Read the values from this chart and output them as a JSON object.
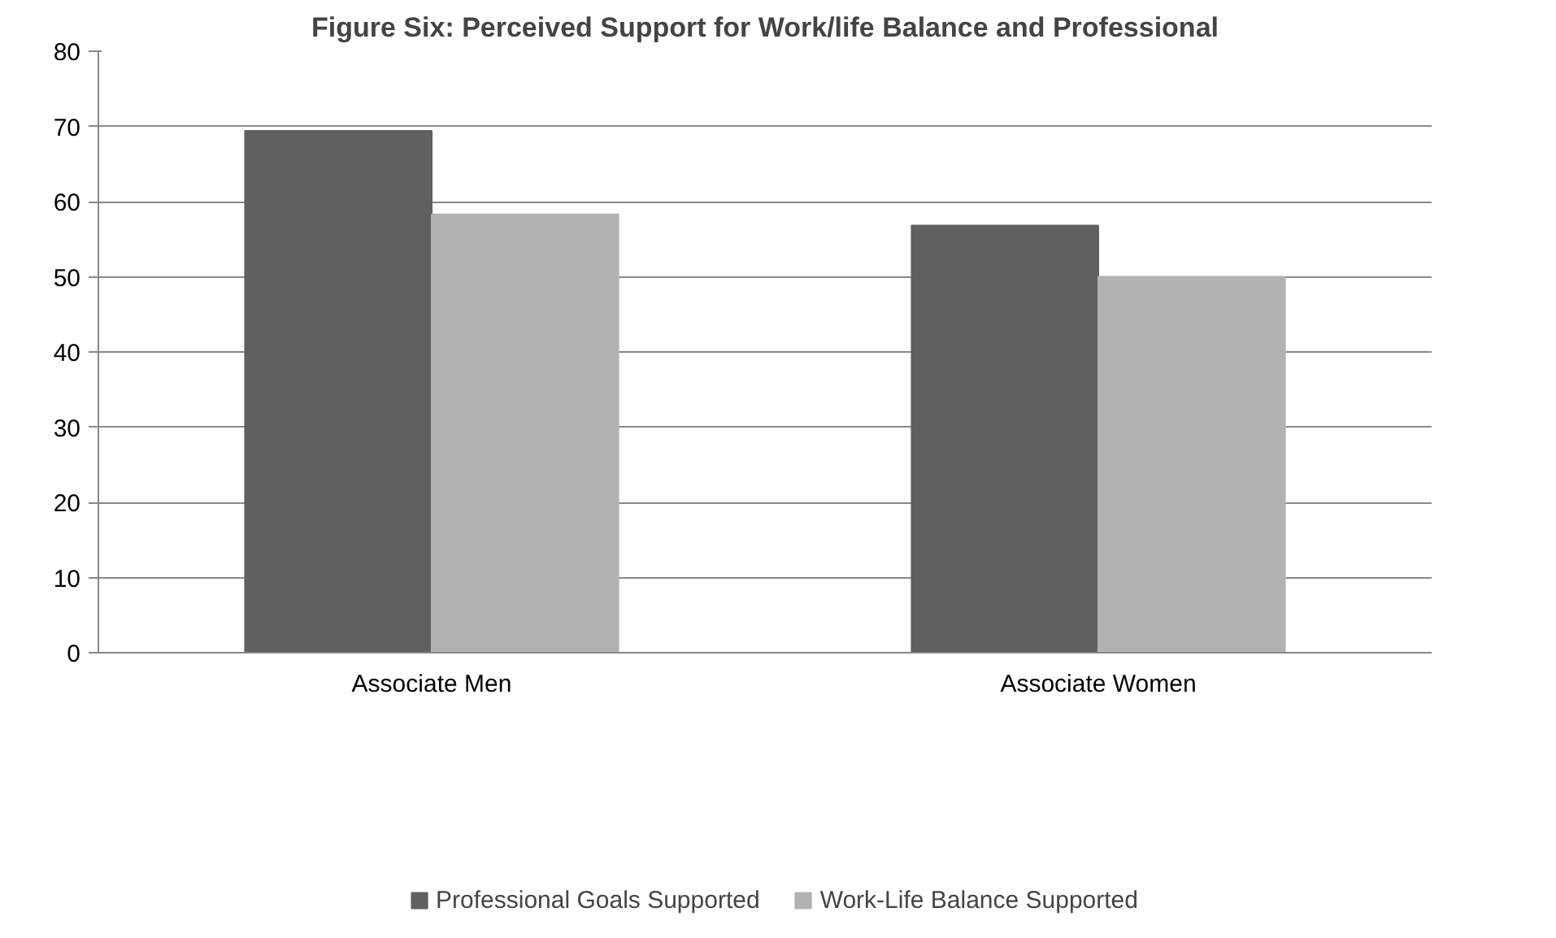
{
  "chart_data": {
    "type": "bar",
    "title": "Figure Six: Perceived Support for Work/life Balance and Professional",
    "categories": [
      "Associate Men",
      "Associate Women"
    ],
    "series": [
      {
        "name": "Professional Goals Supported",
        "color": "#606060",
        "values": [
          69.4,
          56.8
        ]
      },
      {
        "name": "Work-Life Balance Supported",
        "color": "#b2b2b2",
        "values": [
          58.3,
          50
        ]
      }
    ],
    "ylim": [
      0,
      80
    ],
    "yticks": [
      0,
      10,
      20,
      30,
      40,
      50,
      60,
      70,
      80
    ],
    "grid": "y",
    "legend": "bottom"
  }
}
